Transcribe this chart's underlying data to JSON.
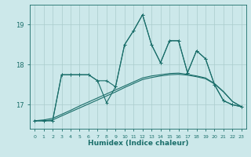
{
  "xlabel": "Humidex (Indice chaleur)",
  "background_color": "#cce8ea",
  "grid_color": "#aacccc",
  "line_color": "#1a6e6a",
  "x_values": [
    0,
    1,
    2,
    3,
    4,
    5,
    6,
    7,
    8,
    9,
    10,
    11,
    12,
    13,
    14,
    15,
    16,
    17,
    18,
    19,
    20,
    21,
    22,
    23
  ],
  "s1": [
    16.6,
    16.6,
    16.6,
    17.75,
    17.75,
    17.75,
    17.75,
    17.6,
    17.6,
    17.45,
    18.5,
    18.85,
    19.25,
    18.5,
    18.05,
    18.6,
    18.6,
    17.8,
    18.35,
    18.15,
    17.5,
    17.1,
    17.0,
    16.95
  ],
  "s2": [
    16.6,
    16.6,
    16.6,
    17.75,
    17.75,
    17.75,
    17.75,
    17.6,
    17.05,
    17.45,
    18.5,
    18.85,
    19.25,
    18.5,
    18.05,
    18.6,
    18.6,
    17.8,
    18.35,
    18.15,
    17.5,
    17.1,
    17.0,
    16.95
  ],
  "s3": [
    16.6,
    16.6,
    16.62,
    16.72,
    16.82,
    16.92,
    17.02,
    17.12,
    17.22,
    17.32,
    17.43,
    17.53,
    17.63,
    17.68,
    17.72,
    17.75,
    17.76,
    17.74,
    17.7,
    17.65,
    17.52,
    17.32,
    17.08,
    16.95
  ],
  "s4": [
    16.6,
    16.62,
    16.66,
    16.76,
    16.86,
    16.97,
    17.07,
    17.17,
    17.27,
    17.37,
    17.47,
    17.57,
    17.67,
    17.72,
    17.75,
    17.78,
    17.79,
    17.76,
    17.72,
    17.67,
    17.53,
    17.33,
    17.08,
    16.95
  ],
  "ylim": [
    16.4,
    19.5
  ],
  "yticks": [
    17,
    18,
    19
  ],
  "xlim": [
    -0.5,
    23.5
  ]
}
